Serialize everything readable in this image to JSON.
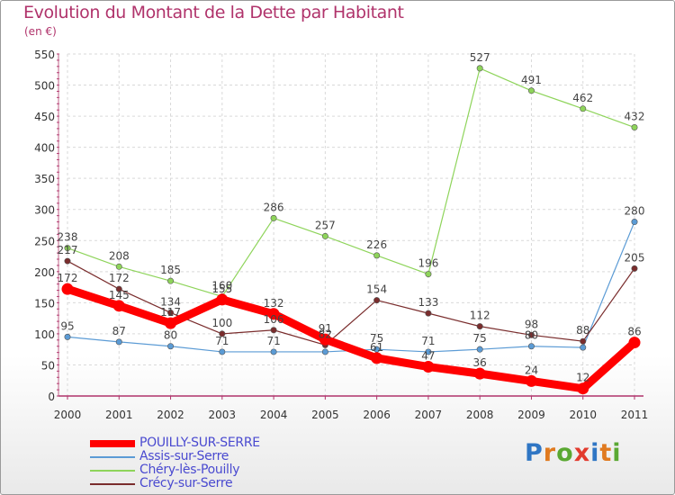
{
  "title": "Evolution du Montant de la Dette par Habitant",
  "subtitle": "(en €)",
  "logo": {
    "letters": [
      "P",
      "r",
      "o",
      "x",
      "i",
      "t",
      "i"
    ],
    "colors": [
      "#2f76c4",
      "#e07a1f",
      "#5aa832",
      "#e23b2e",
      "#2f76c4",
      "#e07a1f",
      "#5aa832"
    ]
  },
  "chart_data": {
    "type": "line",
    "x": [
      "2000",
      "2001",
      "2002",
      "2003",
      "2004",
      "2005",
      "2006",
      "2007",
      "2008",
      "2009",
      "2010",
      "2011"
    ],
    "ylim": [
      0,
      550
    ],
    "yticks": [
      "0",
      "50",
      "100",
      "150",
      "200",
      "250",
      "300",
      "350",
      "400",
      "450",
      "500",
      "550"
    ],
    "grid": true,
    "legend_position": "bottom-left",
    "series": [
      {
        "name": "POUILLY-SUR-SERRE",
        "color": "#ff0000",
        "emphasis": true,
        "values": [
          172,
          145,
          117,
          155,
          132,
          91,
          61,
          47,
          36,
          24,
          12,
          86
        ],
        "labels": [
          "172",
          "145",
          "117",
          "155",
          "132",
          "91",
          "61",
          "47",
          "36",
          "24",
          "12",
          "86"
        ]
      },
      {
        "name": "Assis-sur-Serre",
        "color": "#5b9bd5",
        "values": [
          95,
          87,
          80,
          71,
          71,
          71,
          75,
          71,
          75,
          80,
          78,
          280
        ],
        "labels": [
          "95",
          "87",
          "80",
          "71",
          "71",
          "",
          "75",
          "71",
          "75",
          "80",
          "",
          "280"
        ]
      },
      {
        "name": "Chéry-lès-Pouilly",
        "color": "#8ed45a",
        "values": [
          238,
          208,
          185,
          160,
          286,
          257,
          226,
          196,
          527,
          491,
          462,
          432
        ],
        "labels": [
          "238",
          "208",
          "185",
          "160",
          "286",
          "257",
          "226",
          "196",
          "527",
          "491",
          "462",
          "432"
        ]
      },
      {
        "name": "Crécy-sur-Serre",
        "color": "#7a2d2d",
        "values": [
          217,
          172,
          134,
          100,
          106,
          82,
          154,
          133,
          112,
          98,
          88,
          205
        ],
        "labels": [
          "217",
          "172",
          "134",
          "100",
          "106",
          "82",
          "154",
          "133",
          "112",
          "98",
          "88",
          "205"
        ]
      }
    ]
  }
}
